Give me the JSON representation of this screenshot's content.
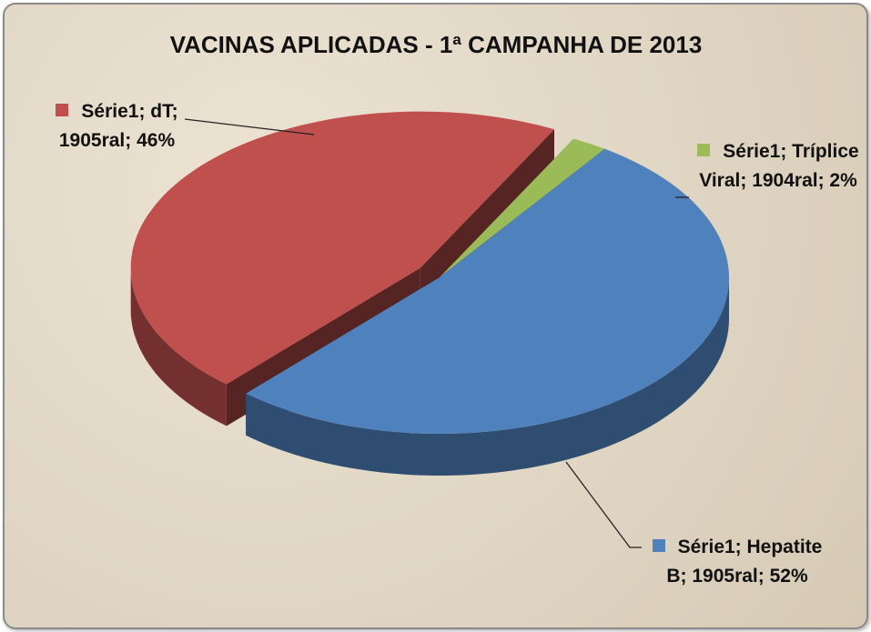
{
  "chart_data": {
    "type": "pie3d",
    "title": "VACINAS APLICADAS - 1ª CAMPANHA DE 2013",
    "series_name": "Série1",
    "categories": [
      "dT",
      "Tríplice Viral",
      "Hepatite B"
    ],
    "values": [
      46,
      2,
      52
    ],
    "value_labels": [
      "Série1; dT; 1905ral; 46%",
      "Série1; Tríplice Viral; 1904ral; 2%",
      "Série1; Hepatite B; 1905ral; 52%"
    ],
    "colors": [
      "#c0504d",
      "#9bbb59",
      "#4f81bd"
    ],
    "exploded": [
      true,
      false,
      false
    ]
  }
}
